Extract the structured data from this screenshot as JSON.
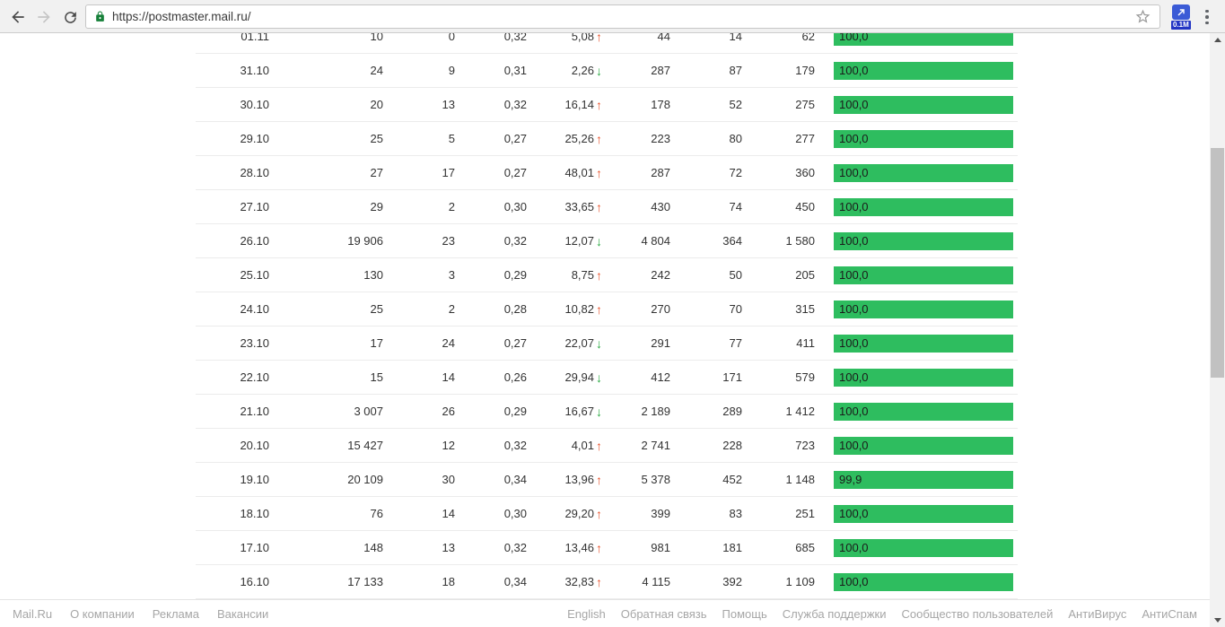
{
  "browser": {
    "url": "https://postmaster.mail.ru/",
    "extension_badge": "0.1M"
  },
  "icons": {
    "trend_up": "↑",
    "trend_down": "↓"
  },
  "colors": {
    "bar_green": "#2ebd5f",
    "trend_up": "#e8502a",
    "trend_down": "#27a93f"
  },
  "table": {
    "rows": [
      {
        "date": "01.11",
        "v1": "10",
        "v2": "0",
        "v3": "0,32",
        "v4": "5,08",
        "trend": "up",
        "v5": "44",
        "v6": "14",
        "v7": "62",
        "bar": "100,0"
      },
      {
        "date": "31.10",
        "v1": "24",
        "v2": "9",
        "v3": "0,31",
        "v4": "2,26",
        "trend": "down",
        "v5": "287",
        "v6": "87",
        "v7": "179",
        "bar": "100,0"
      },
      {
        "date": "30.10",
        "v1": "20",
        "v2": "13",
        "v3": "0,32",
        "v4": "16,14",
        "trend": "up",
        "v5": "178",
        "v6": "52",
        "v7": "275",
        "bar": "100,0"
      },
      {
        "date": "29.10",
        "v1": "25",
        "v2": "5",
        "v3": "0,27",
        "v4": "25,26",
        "trend": "up",
        "v5": "223",
        "v6": "80",
        "v7": "277",
        "bar": "100,0"
      },
      {
        "date": "28.10",
        "v1": "27",
        "v2": "17",
        "v3": "0,27",
        "v4": "48,01",
        "trend": "up",
        "v5": "287",
        "v6": "72",
        "v7": "360",
        "bar": "100,0"
      },
      {
        "date": "27.10",
        "v1": "29",
        "v2": "2",
        "v3": "0,30",
        "v4": "33,65",
        "trend": "up",
        "v5": "430",
        "v6": "74",
        "v7": "450",
        "bar": "100,0"
      },
      {
        "date": "26.10",
        "v1": "19 906",
        "v2": "23",
        "v3": "0,32",
        "v4": "12,07",
        "trend": "down",
        "v5": "4 804",
        "v6": "364",
        "v7": "1 580",
        "bar": "100,0"
      },
      {
        "date": "25.10",
        "v1": "130",
        "v2": "3",
        "v3": "0,29",
        "v4": "8,75",
        "trend": "up",
        "v5": "242",
        "v6": "50",
        "v7": "205",
        "bar": "100,0"
      },
      {
        "date": "24.10",
        "v1": "25",
        "v2": "2",
        "v3": "0,28",
        "v4": "10,82",
        "trend": "up",
        "v5": "270",
        "v6": "70",
        "v7": "315",
        "bar": "100,0"
      },
      {
        "date": "23.10",
        "v1": "17",
        "v2": "24",
        "v3": "0,27",
        "v4": "22,07",
        "trend": "down",
        "v5": "291",
        "v6": "77",
        "v7": "411",
        "bar": "100,0"
      },
      {
        "date": "22.10",
        "v1": "15",
        "v2": "14",
        "v3": "0,26",
        "v4": "29,94",
        "trend": "down",
        "v5": "412",
        "v6": "171",
        "v7": "579",
        "bar": "100,0"
      },
      {
        "date": "21.10",
        "v1": "3 007",
        "v2": "26",
        "v3": "0,29",
        "v4": "16,67",
        "trend": "down",
        "v5": "2 189",
        "v6": "289",
        "v7": "1 412",
        "bar": "100,0"
      },
      {
        "date": "20.10",
        "v1": "15 427",
        "v2": "12",
        "v3": "0,32",
        "v4": "4,01",
        "trend": "up",
        "v5": "2 741",
        "v6": "228",
        "v7": "723",
        "bar": "100,0"
      },
      {
        "date": "19.10",
        "v1": "20 109",
        "v2": "30",
        "v3": "0,34",
        "v4": "13,96",
        "trend": "up",
        "v5": "5 378",
        "v6": "452",
        "v7": "1 148",
        "bar": "99,9"
      },
      {
        "date": "18.10",
        "v1": "76",
        "v2": "14",
        "v3": "0,30",
        "v4": "29,20",
        "trend": "up",
        "v5": "399",
        "v6": "83",
        "v7": "251",
        "bar": "100,0"
      },
      {
        "date": "17.10",
        "v1": "148",
        "v2": "13",
        "v3": "0,32",
        "v4": "13,46",
        "trend": "up",
        "v5": "981",
        "v6": "181",
        "v7": "685",
        "bar": "100,0"
      },
      {
        "date": "16.10",
        "v1": "17 133",
        "v2": "18",
        "v3": "0,34",
        "v4": "32,83",
        "trend": "up",
        "v5": "4 115",
        "v6": "392",
        "v7": "1 109",
        "bar": "100,0"
      }
    ]
  },
  "footer": {
    "left_links": [
      "Mail.Ru",
      "О компании",
      "Реклама",
      "Вакансии"
    ],
    "right_links": [
      "English",
      "Обратная связь",
      "Помощь",
      "Служба поддержки",
      "Сообщество пользователей",
      "АнтиВирус",
      "АнтиСпам"
    ]
  }
}
